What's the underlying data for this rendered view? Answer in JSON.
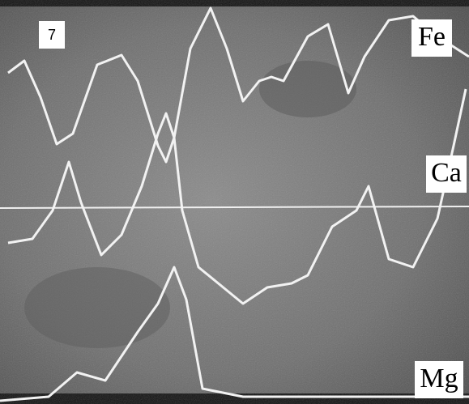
{
  "panel_number": "7",
  "traces": {
    "fe": "Fe",
    "ca": "Ca",
    "mg": "Mg"
  }
}
